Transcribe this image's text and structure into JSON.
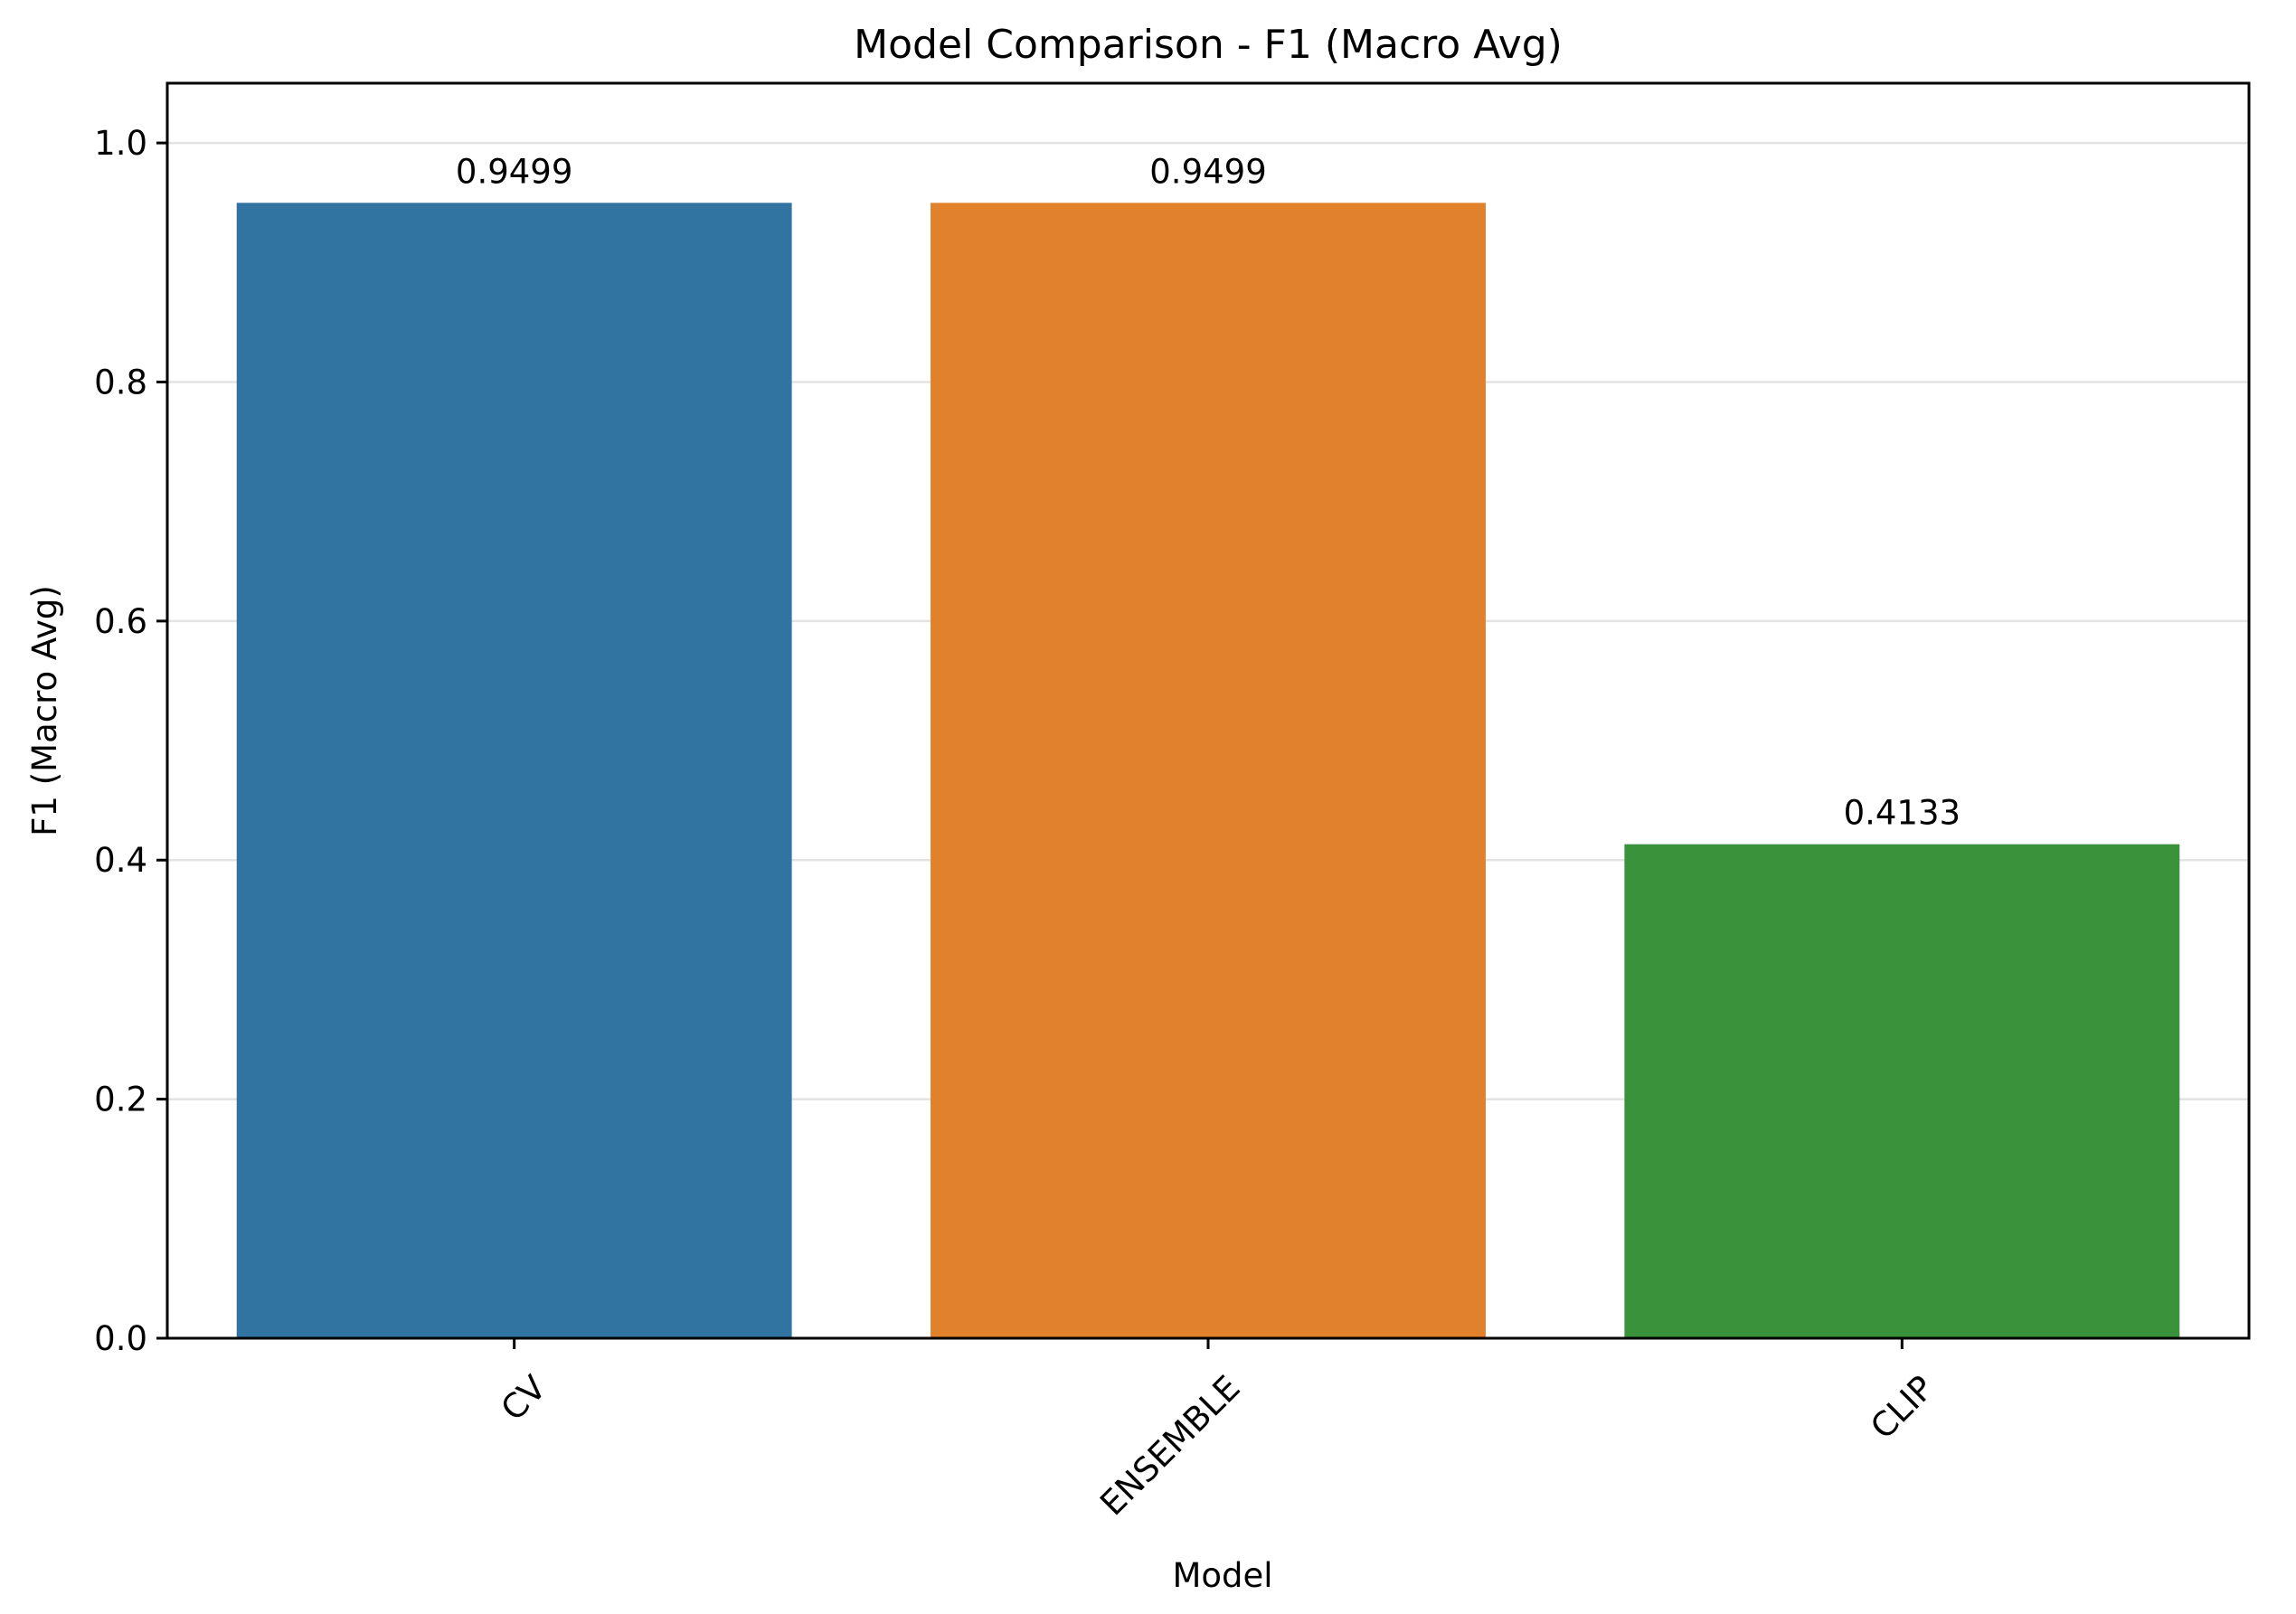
{
  "chart_data": {
    "type": "bar",
    "title": "Model Comparison - F1 (Macro Avg)",
    "xlabel": "Model",
    "ylabel": "F1 (Macro Avg)",
    "categories": [
      "CV",
      "ENSEMBLE",
      "CLIP"
    ],
    "values": [
      0.9499,
      0.9499,
      0.4133
    ],
    "value_labels": [
      "0.9499",
      "0.9499",
      "0.4133"
    ],
    "colors": [
      "#3274a1",
      "#e1812c",
      "#3a923a"
    ],
    "ylim": [
      0,
      1.05
    ],
    "yticks": [
      0.0,
      0.2,
      0.4,
      0.6,
      0.8,
      1.0
    ],
    "ytick_labels": [
      "0.0",
      "0.2",
      "0.4",
      "0.6",
      "0.8",
      "1.0"
    ],
    "grid": "y",
    "xtick_rotation": "45 degrees",
    "legend": "none"
  }
}
